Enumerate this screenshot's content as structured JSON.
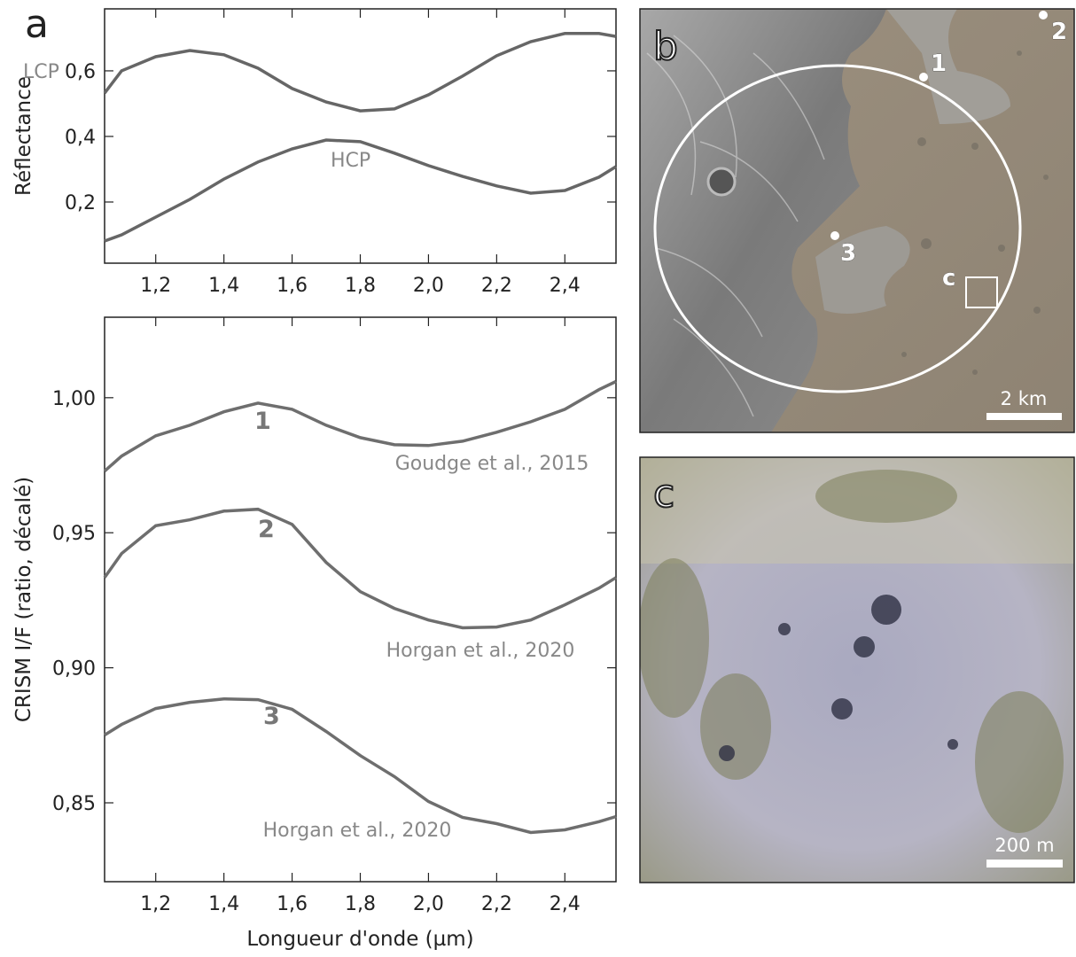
{
  "chart_data": [
    {
      "type": "line",
      "panel": "a",
      "ylabel": "Réflectance",
      "x": [
        1.05,
        1.1,
        1.2,
        1.3,
        1.4,
        1.5,
        1.6,
        1.7,
        1.8,
        1.9,
        2.0,
        2.1,
        2.2,
        2.3,
        2.4,
        2.5,
        2.55
      ],
      "series": [
        {
          "name": "LCP",
          "color": "#666666",
          "values": [
            0.532,
            0.6,
            0.643,
            0.662,
            0.649,
            0.608,
            0.546,
            0.505,
            0.478,
            0.484,
            0.527,
            0.584,
            0.646,
            0.689,
            0.714,
            0.714,
            0.705
          ]
        },
        {
          "name": "HCP",
          "color": "#666666",
          "values": [
            0.081,
            0.1,
            0.154,
            0.208,
            0.27,
            0.322,
            0.362,
            0.389,
            0.384,
            0.349,
            0.311,
            0.278,
            0.249,
            0.227,
            0.235,
            0.276,
            0.308
          ]
        }
      ],
      "xlim": [
        1.05,
        2.55
      ],
      "ylim": [
        0.0135,
        0.789
      ],
      "xticks": [
        {
          "value": 1.2,
          "label": "1,2"
        },
        {
          "value": 1.4,
          "label": "1,4"
        },
        {
          "value": 1.6,
          "label": "1,6"
        },
        {
          "value": 1.8,
          "label": "1,8"
        },
        {
          "value": 2.0,
          "label": "2,0"
        },
        {
          "value": 2.2,
          "label": "2,2"
        },
        {
          "value": 2.4,
          "label": "2,4"
        }
      ],
      "yticks": [
        {
          "value": 0.2,
          "label": "0,2"
        },
        {
          "value": 0.4,
          "label": "0,4"
        },
        {
          "value": 0.6,
          "label": "0,6"
        }
      ]
    },
    {
      "type": "line",
      "xlabel": "Longueur d'onde (µm)",
      "ylabel": "CRISM I/F (ratio, décalé)",
      "x": [
        1.05,
        1.1,
        1.2,
        1.3,
        1.4,
        1.5,
        1.6,
        1.7,
        1.8,
        1.9,
        2.0,
        2.1,
        2.2,
        2.3,
        2.4,
        2.5,
        2.55
      ],
      "series": [
        {
          "name": "1",
          "source": "Goudge et al., 2015",
          "color": "#6e6e6e",
          "values": [
            0.9728,
            0.9784,
            0.9859,
            0.9898,
            0.9948,
            0.998,
            0.9957,
            0.9898,
            0.9852,
            0.9826,
            0.9823,
            0.9839,
            0.9872,
            0.9911,
            0.9957,
            1.003,
            1.006
          ]
        },
        {
          "name": "2",
          "source": "Horgan et al., 2020",
          "color": "#6e6e6e",
          "values": [
            0.9334,
            0.9423,
            0.9526,
            0.9548,
            0.958,
            0.9587,
            0.9531,
            0.939,
            0.9282,
            0.922,
            0.9177,
            0.9148,
            0.9151,
            0.9177,
            0.9233,
            0.9295,
            0.9334
          ]
        },
        {
          "name": "3",
          "source": "Horgan et al., 2020",
          "color": "#6e6e6e",
          "values": [
            0.8751,
            0.879,
            0.8849,
            0.8872,
            0.8885,
            0.8882,
            0.8846,
            0.8764,
            0.8675,
            0.8597,
            0.8505,
            0.8446,
            0.8423,
            0.839,
            0.84,
            0.843,
            0.8449
          ]
        }
      ],
      "xlim": [
        1.05,
        2.55
      ],
      "ylim": [
        0.8208,
        1.0298
      ],
      "xticks": [
        {
          "value": 1.2,
          "label": "1,2"
        },
        {
          "value": 1.4,
          "label": "1,4"
        },
        {
          "value": 1.6,
          "label": "1,6"
        },
        {
          "value": 1.8,
          "label": "1,8"
        },
        {
          "value": 2.0,
          "label": "2,0"
        },
        {
          "value": 2.2,
          "label": "2,2"
        },
        {
          "value": 2.4,
          "label": "2,4"
        }
      ],
      "yticks": [
        {
          "value": 0.85,
          "label": "0,85"
        },
        {
          "value": 0.9,
          "label": "0,90"
        },
        {
          "value": 0.95,
          "label": "0,95"
        },
        {
          "value": 1.0,
          "label": "1,00"
        }
      ]
    }
  ],
  "images": [
    {
      "panel": "b",
      "points": [
        "1",
        "2",
        "3"
      ],
      "box_label": "c",
      "scale_bar": "2 km"
    },
    {
      "panel": "c",
      "scale_bar": "200 m"
    }
  ]
}
